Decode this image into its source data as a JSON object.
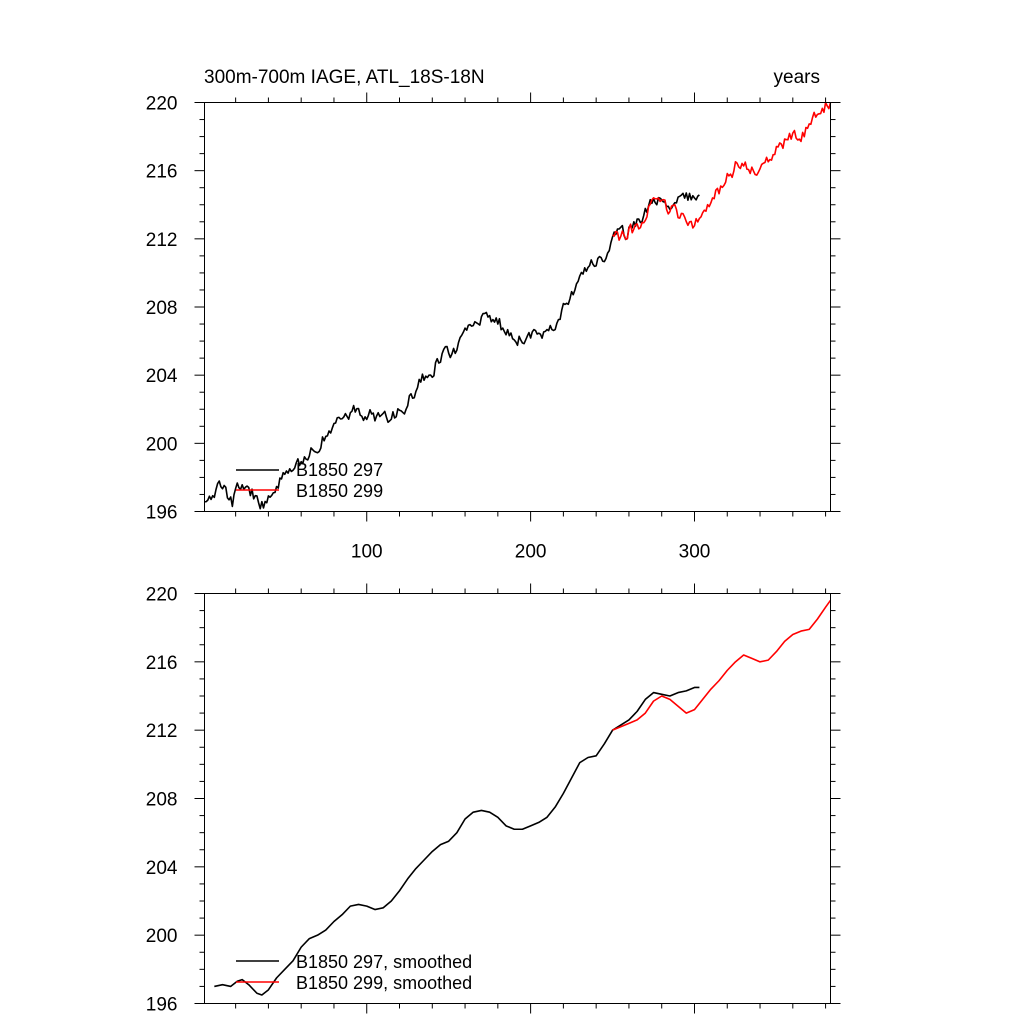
{
  "chart_data": [
    {
      "type": "line",
      "title_left": "300m-700m IAGE, ATL_18S-18N",
      "title_right": "years",
      "xlim": [
        1,
        383
      ],
      "ylim": [
        196,
        220
      ],
      "x_ticks": [
        100,
        200,
        300
      ],
      "x_tick_labels": [
        "100",
        "200",
        "300"
      ],
      "y_ticks": [
        196,
        200,
        204,
        208,
        212,
        216,
        220
      ],
      "y_tick_labels": [
        "196",
        "200",
        "204",
        "208",
        "212",
        "216",
        "220"
      ],
      "series": [
        {
          "name": "B1850 297",
          "color": "#000000",
          "noisy": true,
          "points": [
            [
              1,
              196.3
            ],
            [
              5,
              196.8
            ],
            [
              10,
              197.6
            ],
            [
              14,
              197.2
            ],
            [
              18,
              196.5
            ],
            [
              22,
              197.5
            ],
            [
              26,
              197.6
            ],
            [
              30,
              197.1
            ],
            [
              34,
              196.6
            ],
            [
              38,
              196.3
            ],
            [
              42,
              197.2
            ],
            [
              46,
              197.6
            ],
            [
              50,
              198.0
            ],
            [
              55,
              198.2
            ],
            [
              60,
              198.8
            ],
            [
              65,
              199.5
            ],
            [
              70,
              200.0
            ],
            [
              75,
              200.4
            ],
            [
              80,
              200.9
            ],
            [
              85,
              201.4
            ],
            [
              90,
              201.7
            ],
            [
              95,
              201.9
            ],
            [
              100,
              201.8
            ],
            [
              105,
              201.6
            ],
            [
              110,
              201.4
            ],
            [
              115,
              201.5
            ],
            [
              120,
              201.8
            ],
            [
              125,
              202.4
            ],
            [
              130,
              203.2
            ],
            [
              135,
              203.8
            ],
            [
              140,
              204.3
            ],
            [
              145,
              205.0
            ],
            [
              150,
              205.4
            ],
            [
              155,
              205.6
            ],
            [
              160,
              206.3
            ],
            [
              165,
              206.8
            ],
            [
              170,
              207.2
            ],
            [
              175,
              207.3
            ],
            [
              180,
              207.1
            ],
            [
              185,
              206.6
            ],
            [
              190,
              206.2
            ],
            [
              195,
              206.1
            ],
            [
              200,
              206.3
            ],
            [
              205,
              206.5
            ],
            [
              210,
              206.7
            ],
            [
              215,
              207.2
            ],
            [
              220,
              208.0
            ],
            [
              225,
              208.8
            ],
            [
              230,
              209.6
            ],
            [
              235,
              210.3
            ],
            [
              240,
              210.5
            ],
            [
              245,
              210.9
            ],
            [
              250,
              212.0
            ],
            [
              255,
              212.2
            ],
            [
              260,
              212.5
            ],
            [
              265,
              212.8
            ],
            [
              270,
              213.5
            ],
            [
              275,
              214.2
            ],
            [
              280,
              214.1
            ],
            [
              285,
              214.0
            ],
            [
              290,
              214.2
            ],
            [
              295,
              214.4
            ],
            [
              300,
              214.6
            ],
            [
              303,
              214.8
            ]
          ]
        },
        {
          "name": "B1850 299",
          "color": "#ff0000",
          "noisy": true,
          "points": [
            [
              250,
              212.0
            ],
            [
              255,
              212.2
            ],
            [
              260,
              212.4
            ],
            [
              265,
              212.6
            ],
            [
              270,
              213.4
            ],
            [
              275,
              214.0
            ],
            [
              280,
              214.0
            ],
            [
              285,
              213.6
            ],
            [
              290,
              213.5
            ],
            [
              295,
              213.0
            ],
            [
              300,
              212.9
            ],
            [
              305,
              213.5
            ],
            [
              310,
              214.3
            ],
            [
              315,
              214.8
            ],
            [
              320,
              215.5
            ],
            [
              325,
              216.2
            ],
            [
              330,
              216.4
            ],
            [
              335,
              216.1
            ],
            [
              340,
              216.0
            ],
            [
              345,
              216.5
            ],
            [
              350,
              217.2
            ],
            [
              355,
              217.6
            ],
            [
              360,
              217.9
            ],
            [
              365,
              218.0
            ],
            [
              370,
              218.7
            ],
            [
              375,
              219.4
            ],
            [
              380,
              219.9
            ],
            [
              383,
              219.7
            ]
          ]
        }
      ],
      "legend": {
        "position": "bottom-left",
        "entries": [
          "B1850 297",
          "B1850 299"
        ]
      }
    },
    {
      "type": "line",
      "xlim": [
        1,
        383
      ],
      "ylim": [
        196,
        220
      ],
      "y_ticks": [
        196,
        200,
        204,
        208,
        212,
        216,
        220
      ],
      "y_tick_labels": [
        "196",
        "200",
        "204",
        "208",
        "212",
        "216",
        "220"
      ],
      "series": [
        {
          "name": "B1850 297, smoothed",
          "color": "#000000",
          "noisy": false,
          "points": [
            [
              7,
              197.0
            ],
            [
              12,
              197.1
            ],
            [
              17,
              197.0
            ],
            [
              21,
              197.3
            ],
            [
              24,
              197.4
            ],
            [
              28,
              197.1
            ],
            [
              33,
              196.6
            ],
            [
              36,
              196.5
            ],
            [
              40,
              196.8
            ],
            [
              45,
              197.5
            ],
            [
              50,
              198.0
            ],
            [
              55,
              198.5
            ],
            [
              60,
              199.3
            ],
            [
              65,
              199.8
            ],
            [
              70,
              200.0
            ],
            [
              75,
              200.3
            ],
            [
              80,
              200.8
            ],
            [
              85,
              201.2
            ],
            [
              90,
              201.7
            ],
            [
              95,
              201.8
            ],
            [
              100,
              201.7
            ],
            [
              105,
              201.5
            ],
            [
              110,
              201.6
            ],
            [
              115,
              202.0
            ],
            [
              120,
              202.6
            ],
            [
              125,
              203.3
            ],
            [
              130,
              203.9
            ],
            [
              135,
              204.4
            ],
            [
              140,
              204.9
            ],
            [
              145,
              205.3
            ],
            [
              150,
              205.5
            ],
            [
              155,
              206.0
            ],
            [
              160,
              206.8
            ],
            [
              165,
              207.2
            ],
            [
              170,
              207.3
            ],
            [
              175,
              207.2
            ],
            [
              180,
              206.9
            ],
            [
              185,
              206.4
            ],
            [
              190,
              206.2
            ],
            [
              195,
              206.2
            ],
            [
              200,
              206.4
            ],
            [
              205,
              206.6
            ],
            [
              210,
              206.9
            ],
            [
              215,
              207.5
            ],
            [
              220,
              208.3
            ],
            [
              225,
              209.2
            ],
            [
              230,
              210.1
            ],
            [
              235,
              210.4
            ],
            [
              240,
              210.5
            ],
            [
              245,
              211.2
            ],
            [
              250,
              212.0
            ],
            [
              255,
              212.3
            ],
            [
              260,
              212.6
            ],
            [
              265,
              213.1
            ],
            [
              270,
              213.8
            ],
            [
              275,
              214.2
            ],
            [
              280,
              214.1
            ],
            [
              285,
              214.0
            ],
            [
              290,
              214.2
            ],
            [
              295,
              214.3
            ],
            [
              300,
              214.5
            ],
            [
              303,
              214.5
            ]
          ]
        },
        {
          "name": "B1850 299, smoothed",
          "color": "#ff0000",
          "noisy": false,
          "points": [
            [
              250,
              212.0
            ],
            [
              255,
              212.2
            ],
            [
              260,
              212.4
            ],
            [
              265,
              212.6
            ],
            [
              270,
              213.0
            ],
            [
              275,
              213.7
            ],
            [
              280,
              214.0
            ],
            [
              285,
              213.8
            ],
            [
              290,
              213.4
            ],
            [
              295,
              213.0
            ],
            [
              300,
              213.2
            ],
            [
              305,
              213.8
            ],
            [
              310,
              214.4
            ],
            [
              315,
              214.9
            ],
            [
              320,
              215.5
            ],
            [
              325,
              216.0
            ],
            [
              330,
              216.4
            ],
            [
              335,
              216.2
            ],
            [
              340,
              216.0
            ],
            [
              345,
              216.1
            ],
            [
              350,
              216.6
            ],
            [
              355,
              217.2
            ],
            [
              360,
              217.6
            ],
            [
              365,
              217.8
            ],
            [
              370,
              217.9
            ],
            [
              375,
              218.5
            ],
            [
              380,
              219.2
            ],
            [
              383,
              219.6
            ]
          ]
        }
      ],
      "legend": {
        "position": "bottom-left",
        "entries": [
          "B1850 297, smoothed",
          "B1850 299, smoothed"
        ]
      }
    }
  ]
}
